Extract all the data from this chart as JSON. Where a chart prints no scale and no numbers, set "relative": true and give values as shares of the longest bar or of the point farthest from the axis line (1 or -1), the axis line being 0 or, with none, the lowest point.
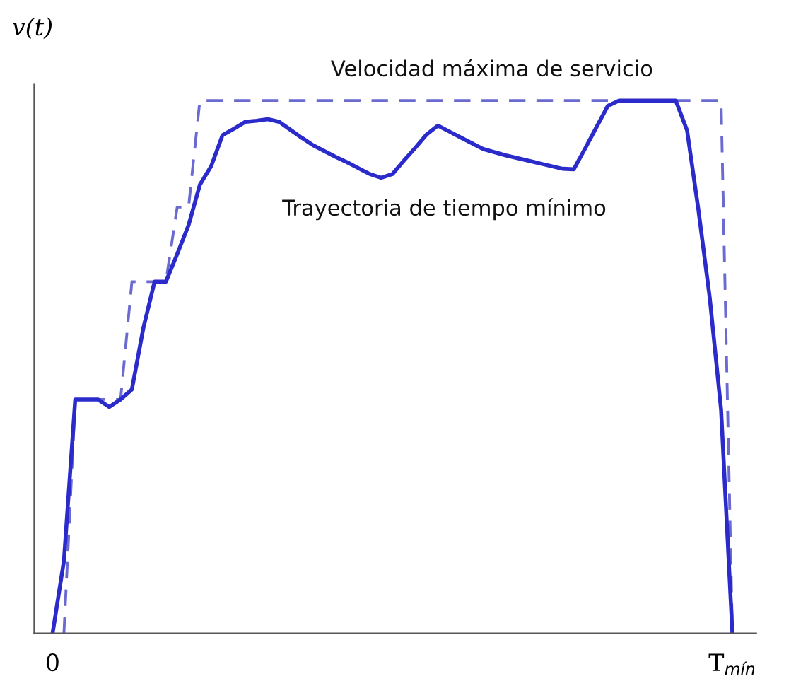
{
  "chart_data": {
    "type": "line",
    "ylabel": "v(t)",
    "relative": true,
    "categories": [
      "0",
      null,
      null,
      null,
      null,
      null,
      null,
      null,
      null,
      null,
      null,
      null,
      null,
      null,
      null,
      null,
      null,
      null,
      null,
      null,
      null,
      null,
      null,
      null,
      null,
      null,
      null,
      null,
      null,
      null,
      null,
      null,
      null,
      null,
      null,
      null,
      null,
      null,
      null,
      null,
      null,
      null,
      null,
      null,
      null,
      null,
      null,
      null,
      null,
      null,
      null,
      null,
      null,
      null,
      null,
      null,
      null,
      null,
      null,
      null,
      "T$_{mín}$"
    ],
    "series": [
      {
        "name": "Velocidad máxima de servicio",
        "color": "#6a6ad0",
        "line_style": "dashed",
        "values": [
          null,
          0,
          0.439,
          0.439,
          0.439,
          0.439,
          0.439,
          0.66,
          0.66,
          0.66,
          0.66,
          0.8,
          0.8,
          1.0,
          1.0,
          1.0,
          1.0,
          1.0,
          1.0,
          1.0,
          1.0,
          1.0,
          1.0,
          1.0,
          1.0,
          1.0,
          1.0,
          1.0,
          1.0,
          1.0,
          1.0,
          1.0,
          1.0,
          1.0,
          1.0,
          1.0,
          1.0,
          1.0,
          1.0,
          1.0,
          1.0,
          1.0,
          1.0,
          1.0,
          1.0,
          1.0,
          1.0,
          1.0,
          1.0,
          1.0,
          1.0,
          1.0,
          1.0,
          1.0,
          1.0,
          1.0,
          1.0,
          1.0,
          1.0,
          1.0,
          0
        ]
      },
      {
        "name": "Trayectoria de tiempo mínimo",
        "color": "#2b2bcc",
        "line_style": "solid",
        "values": [
          0,
          0.136,
          0.439,
          0.439,
          0.439,
          0.425,
          0.439,
          0.458,
          0.572,
          0.66,
          0.66,
          0.712,
          0.766,
          0.842,
          0.877,
          0.935,
          0.947,
          0.96,
          0.962,
          0.965,
          0.96,
          0.945,
          0.93,
          0.916,
          0.905,
          0.894,
          0.884,
          0.873,
          0.862,
          0.855,
          0.862,
          0.887,
          0.911,
          0.936,
          0.953,
          0.942,
          0.931,
          0.92,
          0.909,
          0.903,
          0.897,
          0.892,
          0.887,
          0.882,
          0.877,
          0.872,
          0.871,
          0.91,
          0.95,
          0.99,
          1.0,
          1.0,
          1.0,
          1.0,
          1.0,
          1.0,
          0.944,
          0.795,
          0.63,
          0.42,
          0
        ]
      }
    ]
  }
}
